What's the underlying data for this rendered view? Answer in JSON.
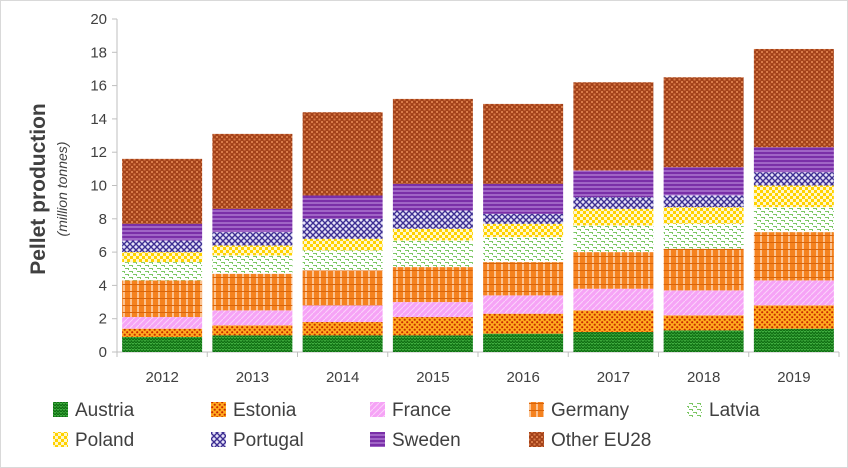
{
  "chart_data": {
    "type": "bar",
    "stacked": true,
    "categories": [
      "2012",
      "2013",
      "2014",
      "2015",
      "2016",
      "2017",
      "2018",
      "2019"
    ],
    "ylabel": "Pellet production",
    "ylabel_sub": "(million tonnes)",
    "ylim": [
      0,
      20
    ],
    "yticks": [
      0,
      2,
      4,
      6,
      8,
      10,
      12,
      14,
      16,
      18,
      20
    ],
    "grid": false,
    "legend_position": "bottom",
    "series": [
      {
        "name": "Austria",
        "color": "#2e9e2e",
        "pattern": "zigzag",
        "values": [
          0.9,
          1.0,
          1.0,
          1.0,
          1.1,
          1.2,
          1.3,
          1.4
        ]
      },
      {
        "name": "Estonia",
        "color": "#ff9c00",
        "pattern": "dots",
        "values": [
          0.5,
          0.6,
          0.8,
          1.1,
          1.2,
          1.3,
          0.9,
          1.4
        ]
      },
      {
        "name": "France",
        "color": "#f08cf0",
        "pattern": "light",
        "values": [
          0.7,
          0.9,
          1.0,
          0.9,
          1.1,
          1.3,
          1.5,
          1.5
        ]
      },
      {
        "name": "Germany",
        "color": "#f5821f",
        "pattern": "grid",
        "values": [
          2.2,
          2.2,
          2.1,
          2.1,
          2.0,
          2.2,
          2.5,
          2.9
        ]
      },
      {
        "name": "Latvia",
        "color": "#8cd67a",
        "pattern": "dashgrid",
        "values": [
          1.1,
          1.1,
          1.2,
          1.6,
          1.5,
          1.6,
          1.5,
          1.5
        ]
      },
      {
        "name": "Poland",
        "color": "#ffd200",
        "pattern": "checker",
        "values": [
          0.6,
          0.6,
          0.7,
          0.7,
          0.8,
          1.0,
          1.0,
          1.3
        ]
      },
      {
        "name": "Portugal",
        "color": "#6a5bb4",
        "pattern": "weave",
        "values": [
          0.7,
          0.8,
          1.2,
          1.1,
          0.6,
          0.7,
          0.7,
          0.8
        ]
      },
      {
        "name": "Sweden",
        "color": "#7a2fa8",
        "pattern": "hlines",
        "values": [
          1.0,
          1.4,
          1.4,
          1.6,
          1.8,
          1.6,
          1.7,
          1.5
        ]
      },
      {
        "name": "Other EU28",
        "color": "#a3421a",
        "pattern": "brick",
        "values": [
          3.9,
          4.5,
          5.0,
          5.1,
          4.8,
          5.3,
          5.4,
          5.9
        ]
      }
    ]
  }
}
